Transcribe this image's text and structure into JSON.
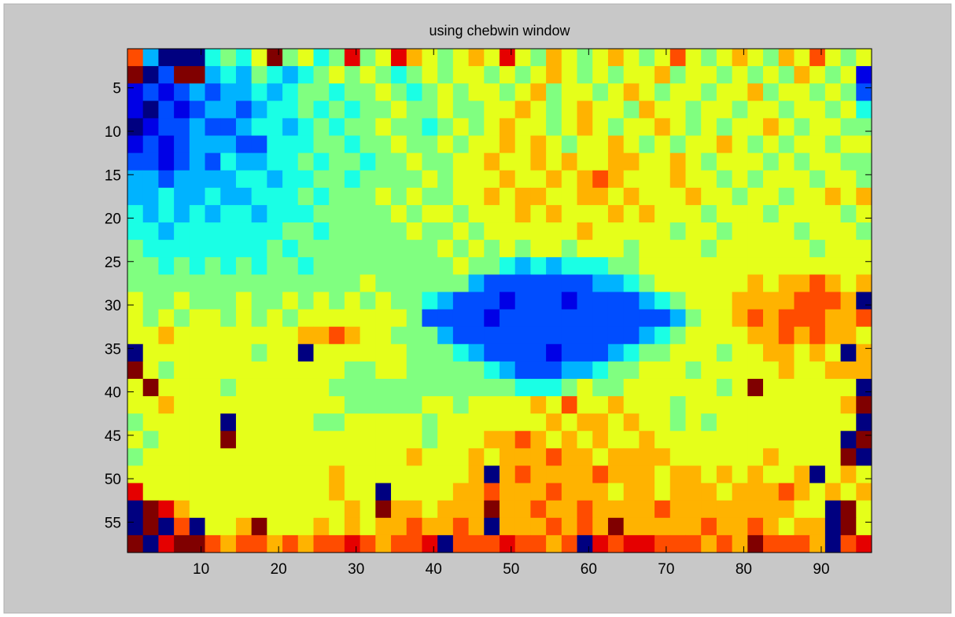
{
  "chart_data": {
    "type": "heatmap",
    "title": "using chebwin window",
    "colormap": "jet",
    "clim": [
      0,
      10
    ],
    "x": [
      1.5,
      3.5,
      5.5,
      7.5,
      9.5,
      11.5,
      13.5,
      15.5,
      17.5,
      19.5,
      21.5,
      23.5,
      25.5,
      27.5,
      29.5,
      31.5,
      33.5,
      35.5,
      37.5,
      39.5,
      41.5,
      43.5,
      45.5,
      47.5,
      49.5,
      51.5,
      53.5,
      55.5,
      57.5,
      59.5,
      61.5,
      63.5,
      65.5,
      67.5,
      69.5,
      71.5,
      73.5,
      75.5,
      77.5,
      79.5,
      81.5,
      83.5,
      85.5,
      87.5,
      89.5,
      91.5,
      93.5,
      95.5
    ],
    "y": [
      1.5,
      3.5,
      5.5,
      7.5,
      9.5,
      11.5,
      13.5,
      15.5,
      17.5,
      19.5,
      21.5,
      23.5,
      25.5,
      27.5,
      29.5,
      31.5,
      33.5,
      35.5,
      37.5,
      39.5,
      41.5,
      43.5,
      45.5,
      47.5,
      49.5,
      51.5,
      53.5,
      55.5,
      57.5
    ],
    "z": [
      [
        8,
        3,
        0,
        0,
        0,
        4,
        5,
        4,
        6,
        10,
        5,
        6,
        4,
        5,
        9,
        5,
        6,
        9,
        7,
        6,
        5,
        6,
        7,
        6,
        9,
        6,
        5,
        7,
        6,
        5,
        6,
        7,
        6,
        5,
        6,
        8,
        6,
        5,
        6,
        7,
        6,
        5,
        7,
        6,
        8,
        6,
        5,
        6
      ],
      [
        10,
        0,
        2,
        10,
        10,
        3,
        4,
        3,
        5,
        4,
        3,
        4,
        5,
        6,
        5,
        6,
        5,
        4,
        5,
        6,
        5,
        6,
        6,
        5,
        6,
        5,
        6,
        7,
        6,
        5,
        6,
        5,
        6,
        6,
        7,
        5,
        6,
        6,
        5,
        6,
        5,
        6,
        5,
        7,
        6,
        5,
        6,
        1
      ],
      [
        1,
        2,
        1,
        2,
        3,
        2,
        3,
        3,
        4,
        3,
        4,
        5,
        5,
        4,
        5,
        5,
        6,
        5,
        4,
        5,
        6,
        5,
        6,
        6,
        5,
        6,
        7,
        5,
        6,
        6,
        5,
        6,
        7,
        6,
        5,
        6,
        6,
        5,
        6,
        6,
        7,
        5,
        6,
        6,
        5,
        6,
        5,
        2
      ],
      [
        1,
        0,
        2,
        1,
        2,
        3,
        3,
        2,
        3,
        4,
        4,
        5,
        4,
        5,
        4,
        5,
        5,
        6,
        5,
        5,
        6,
        5,
        5,
        6,
        6,
        7,
        6,
        5,
        6,
        7,
        6,
        6,
        5,
        7,
        6,
        6,
        5,
        6,
        6,
        5,
        6,
        6,
        5,
        6,
        6,
        5,
        6,
        4
      ],
      [
        0,
        1,
        2,
        2,
        3,
        2,
        2,
        3,
        4,
        4,
        3,
        4,
        5,
        4,
        5,
        5,
        6,
        5,
        5,
        4,
        5,
        6,
        5,
        6,
        7,
        6,
        6,
        5,
        6,
        7,
        6,
        5,
        6,
        6,
        7,
        6,
        5,
        6,
        5,
        6,
        6,
        7,
        6,
        5,
        6,
        6,
        5,
        5
      ],
      [
        1,
        2,
        1,
        2,
        3,
        3,
        3,
        2,
        2,
        4,
        4,
        4,
        5,
        5,
        4,
        5,
        5,
        6,
        5,
        5,
        6,
        5,
        6,
        6,
        7,
        6,
        7,
        6,
        5,
        6,
        6,
        7,
        6,
        5,
        6,
        5,
        6,
        6,
        7,
        6,
        5,
        6,
        5,
        6,
        6,
        5,
        6,
        6
      ],
      [
        2,
        2,
        1,
        2,
        3,
        2,
        4,
        3,
        3,
        4,
        4,
        5,
        4,
        5,
        5,
        4,
        5,
        5,
        6,
        5,
        5,
        6,
        6,
        7,
        6,
        6,
        7,
        6,
        7,
        6,
        6,
        7,
        7,
        6,
        6,
        7,
        6,
        5,
        6,
        6,
        6,
        5,
        6,
        5,
        6,
        6,
        5,
        5
      ],
      [
        3,
        3,
        2,
        3,
        3,
        3,
        3,
        4,
        4,
        3,
        4,
        4,
        5,
        5,
        4,
        5,
        5,
        5,
        5,
        6,
        5,
        6,
        6,
        6,
        7,
        6,
        6,
        7,
        6,
        7,
        8,
        7,
        6,
        6,
        6,
        7,
        6,
        6,
        5,
        6,
        5,
        6,
        6,
        6,
        5,
        6,
        6,
        5
      ],
      [
        3,
        3,
        4,
        3,
        3,
        4,
        3,
        3,
        4,
        4,
        4,
        5,
        4,
        5,
        5,
        5,
        6,
        5,
        6,
        5,
        5,
        6,
        6,
        7,
        6,
        7,
        7,
        6,
        6,
        7,
        7,
        6,
        7,
        6,
        6,
        6,
        7,
        6,
        6,
        5,
        6,
        6,
        5,
        6,
        6,
        7,
        6,
        7
      ],
      [
        4,
        3,
        4,
        3,
        4,
        3,
        4,
        4,
        3,
        4,
        4,
        4,
        5,
        5,
        5,
        5,
        5,
        6,
        5,
        6,
        6,
        5,
        6,
        6,
        6,
        7,
        6,
        7,
        6,
        6,
        6,
        7,
        6,
        7,
        6,
        6,
        6,
        5,
        6,
        6,
        6,
        5,
        6,
        6,
        6,
        6,
        5,
        6
      ],
      [
        4,
        4,
        3,
        4,
        4,
        4,
        4,
        4,
        4,
        4,
        5,
        5,
        4,
        5,
        5,
        5,
        5,
        5,
        6,
        5,
        5,
        6,
        5,
        6,
        6,
        6,
        6,
        6,
        6,
        7,
        6,
        6,
        6,
        6,
        6,
        5,
        6,
        6,
        5,
        6,
        6,
        6,
        6,
        5,
        6,
        6,
        6,
        5
      ],
      [
        5,
        4,
        4,
        4,
        4,
        4,
        4,
        4,
        4,
        5,
        4,
        5,
        5,
        5,
        5,
        5,
        5,
        5,
        5,
        5,
        6,
        5,
        6,
        5,
        6,
        5,
        6,
        6,
        5,
        6,
        6,
        6,
        5,
        6,
        6,
        6,
        6,
        5,
        6,
        6,
        6,
        6,
        6,
        6,
        5,
        6,
        6,
        6
      ],
      [
        5,
        5,
        4,
        5,
        4,
        5,
        4,
        5,
        4,
        5,
        5,
        4,
        5,
        5,
        5,
        5,
        5,
        5,
        5,
        5,
        5,
        6,
        5,
        5,
        4,
        3,
        4,
        3,
        4,
        4,
        4,
        5,
        5,
        6,
        6,
        6,
        6,
        6,
        6,
        6,
        6,
        6,
        6,
        6,
        6,
        6,
        6,
        6
      ],
      [
        5,
        5,
        5,
        5,
        5,
        5,
        5,
        5,
        5,
        5,
        5,
        5,
        5,
        5,
        5,
        6,
        5,
        5,
        5,
        5,
        5,
        5,
        3,
        2,
        2,
        2,
        2,
        2,
        2,
        2,
        3,
        3,
        4,
        5,
        6,
        6,
        6,
        6,
        6,
        6,
        7,
        6,
        7,
        7,
        8,
        7,
        6,
        7
      ],
      [
        6,
        5,
        5,
        6,
        5,
        5,
        5,
        6,
        5,
        5,
        6,
        5,
        6,
        5,
        6,
        5,
        6,
        5,
        5,
        4,
        3,
        2,
        2,
        2,
        1,
        2,
        2,
        2,
        1,
        2,
        2,
        2,
        2,
        3,
        4,
        5,
        6,
        6,
        6,
        7,
        7,
        7,
        7,
        8,
        8,
        8,
        7,
        0
      ],
      [
        6,
        5,
        6,
        5,
        6,
        6,
        5,
        6,
        5,
        6,
        5,
        6,
        6,
        6,
        6,
        6,
        6,
        6,
        5,
        2,
        2,
        2,
        2,
        1,
        2,
        2,
        2,
        2,
        2,
        2,
        2,
        2,
        2,
        2,
        2,
        3,
        5,
        6,
        6,
        7,
        8,
        7,
        8,
        8,
        8,
        7,
        7,
        8
      ],
      [
        6,
        6,
        7,
        6,
        6,
        6,
        6,
        6,
        6,
        6,
        6,
        7,
        7,
        8,
        7,
        6,
        6,
        5,
        5,
        5,
        3,
        2,
        2,
        2,
        2,
        2,
        2,
        2,
        2,
        2,
        2,
        2,
        2,
        3,
        4,
        5,
        6,
        6,
        6,
        6,
        7,
        7,
        8,
        7,
        8,
        7,
        7,
        6
      ],
      [
        0,
        6,
        6,
        6,
        6,
        6,
        6,
        6,
        5,
        6,
        6,
        0,
        6,
        6,
        6,
        6,
        6,
        6,
        5,
        5,
        5,
        4,
        3,
        2,
        2,
        2,
        2,
        1,
        2,
        2,
        2,
        3,
        4,
        5,
        5,
        6,
        6,
        6,
        5,
        6,
        6,
        7,
        7,
        6,
        7,
        6,
        0,
        7
      ],
      [
        10,
        6,
        5,
        6,
        6,
        6,
        6,
        6,
        6,
        6,
        6,
        6,
        6,
        6,
        5,
        5,
        6,
        6,
        5,
        5,
        5,
        5,
        5,
        4,
        3,
        2,
        2,
        2,
        3,
        3,
        4,
        5,
        5,
        6,
        6,
        6,
        5,
        6,
        6,
        6,
        6,
        6,
        7,
        6,
        6,
        7,
        7,
        7
      ],
      [
        6,
        10,
        6,
        6,
        6,
        6,
        5,
        6,
        6,
        6,
        6,
        6,
        6,
        5,
        5,
        5,
        5,
        5,
        5,
        5,
        5,
        5,
        5,
        5,
        5,
        4,
        4,
        4,
        5,
        6,
        5,
        5,
        6,
        6,
        6,
        6,
        6,
        6,
        5,
        6,
        10,
        6,
        6,
        6,
        6,
        6,
        6,
        0
      ],
      [
        6,
        6,
        7,
        6,
        6,
        6,
        6,
        6,
        6,
        6,
        6,
        6,
        6,
        6,
        5,
        5,
        5,
        5,
        5,
        6,
        6,
        5,
        6,
        6,
        6,
        6,
        7,
        6,
        8,
        6,
        6,
        7,
        6,
        6,
        6,
        5,
        6,
        6,
        6,
        6,
        6,
        6,
        6,
        6,
        6,
        6,
        7,
        10
      ],
      [
        5,
        6,
        6,
        6,
        6,
        6,
        0,
        6,
        6,
        6,
        6,
        6,
        5,
        5,
        6,
        6,
        6,
        6,
        6,
        5,
        6,
        6,
        6,
        6,
        6,
        6,
        6,
        7,
        6,
        7,
        7,
        6,
        7,
        6,
        6,
        5,
        6,
        5,
        6,
        6,
        6,
        6,
        6,
        6,
        6,
        6,
        6,
        0
      ],
      [
        6,
        5,
        6,
        6,
        6,
        6,
        10,
        6,
        6,
        6,
        6,
        6,
        6,
        6,
        6,
        6,
        6,
        6,
        6,
        5,
        6,
        6,
        6,
        7,
        7,
        8,
        7,
        6,
        7,
        6,
        7,
        6,
        6,
        7,
        6,
        6,
        6,
        6,
        6,
        6,
        6,
        6,
        6,
        6,
        6,
        6,
        0,
        10
      ],
      [
        5,
        6,
        6,
        6,
        6,
        6,
        6,
        6,
        6,
        6,
        6,
        6,
        6,
        6,
        6,
        6,
        6,
        6,
        7,
        6,
        6,
        6,
        7,
        6,
        7,
        7,
        7,
        8,
        7,
        7,
        6,
        7,
        7,
        7,
        7,
        6,
        6,
        6,
        6,
        6,
        6,
        7,
        6,
        6,
        6,
        6,
        10,
        0
      ],
      [
        6,
        6,
        6,
        6,
        6,
        6,
        6,
        6,
        6,
        6,
        6,
        6,
        6,
        7,
        6,
        6,
        6,
        6,
        6,
        6,
        6,
        6,
        7,
        0,
        7,
        8,
        7,
        7,
        7,
        7,
        8,
        7,
        7,
        7,
        6,
        7,
        7,
        6,
        7,
        6,
        7,
        6,
        6,
        7,
        0,
        6,
        7,
        6
      ],
      [
        9,
        6,
        6,
        6,
        6,
        6,
        6,
        6,
        6,
        6,
        6,
        6,
        6,
        7,
        6,
        6,
        0,
        6,
        6,
        6,
        6,
        7,
        7,
        8,
        7,
        7,
        7,
        8,
        7,
        7,
        7,
        6,
        7,
        7,
        6,
        7,
        7,
        7,
        6,
        7,
        7,
        7,
        8,
        7,
        6,
        7,
        6,
        7
      ],
      [
        0,
        10,
        9,
        7,
        6,
        6,
        6,
        6,
        6,
        6,
        6,
        6,
        6,
        6,
        7,
        6,
        10,
        7,
        7,
        6,
        7,
        7,
        7,
        10,
        7,
        7,
        8,
        7,
        7,
        8,
        7,
        7,
        7,
        7,
        8,
        7,
        7,
        7,
        7,
        7,
        7,
        7,
        7,
        6,
        6,
        0,
        10,
        6
      ],
      [
        0,
        10,
        0,
        8,
        0,
        6,
        6,
        7,
        10,
        6,
        6,
        6,
        7,
        6,
        7,
        6,
        7,
        7,
        8,
        7,
        7,
        8,
        7,
        0,
        7,
        7,
        7,
        8,
        7,
        8,
        7,
        10,
        7,
        7,
        7,
        7,
        7,
        8,
        7,
        7,
        8,
        7,
        6,
        7,
        7,
        0,
        10,
        6
      ],
      [
        10,
        0,
        9,
        10,
        10,
        8,
        7,
        8,
        8,
        7,
        8,
        7,
        8,
        8,
        9,
        8,
        7,
        8,
        8,
        9,
        0,
        8,
        8,
        8,
        9,
        8,
        8,
        7,
        8,
        0,
        9,
        8,
        9,
        9,
        8,
        8,
        8,
        7,
        8,
        7,
        10,
        8,
        8,
        8,
        7,
        0,
        8,
        9
      ]
    ],
    "xlim": [
      0.5,
      96.5
    ],
    "ylim": [
      0.5,
      58.5
    ],
    "xticks": [
      10,
      20,
      30,
      40,
      50,
      60,
      70,
      80,
      90
    ],
    "yticks": [
      5,
      10,
      15,
      20,
      25,
      30,
      35,
      40,
      45,
      50,
      55
    ]
  }
}
